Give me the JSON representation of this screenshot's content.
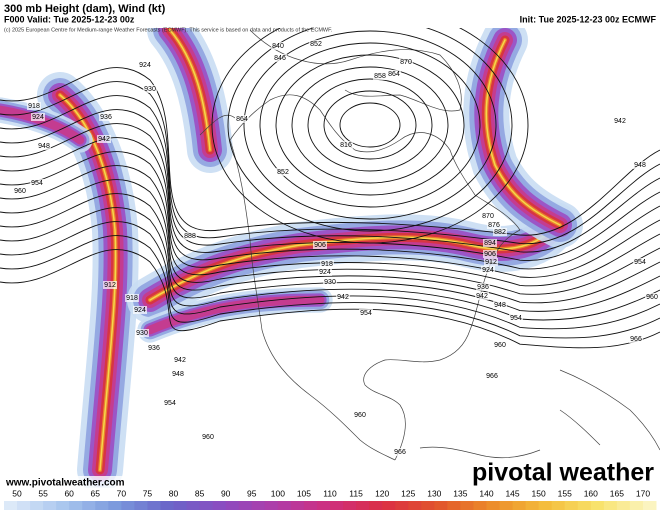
{
  "header": {
    "title": "300 mb Height (dam), Wind (kt)",
    "valid": "F000 Valid: Tue 2025-12-23 00z",
    "init": "Init: Tue 2025-12-23 00z ECMWF",
    "copyright": "(c) 2025 European Centre for Medium-range Weather Forecasts (ECMWF). This service is based on data and products of the ECMWF."
  },
  "footer": {
    "website": "www.pivotalweather.com",
    "logo": "pivotal weather"
  },
  "colorbar": {
    "ticks": [
      50,
      55,
      60,
      65,
      70,
      75,
      80,
      85,
      90,
      95,
      100,
      105,
      110,
      115,
      120,
      125,
      130,
      135,
      140,
      145,
      150,
      155,
      160,
      165,
      170
    ]
  },
  "contour_labels": [
    918,
    924,
    948,
    954,
    960,
    930,
    924,
    936,
    942,
    888,
    912,
    918,
    924,
    930,
    936,
    942,
    948,
    954,
    960,
    864,
    852,
    840,
    846,
    852,
    870,
    864,
    858,
    816,
    870,
    876,
    882,
    894,
    906,
    912,
    924,
    936,
    942,
    948,
    954,
    960,
    966,
    960,
    942,
    948,
    954,
    966,
    960,
    966,
    954,
    942,
    930,
    924,
    918,
    906
  ]
}
